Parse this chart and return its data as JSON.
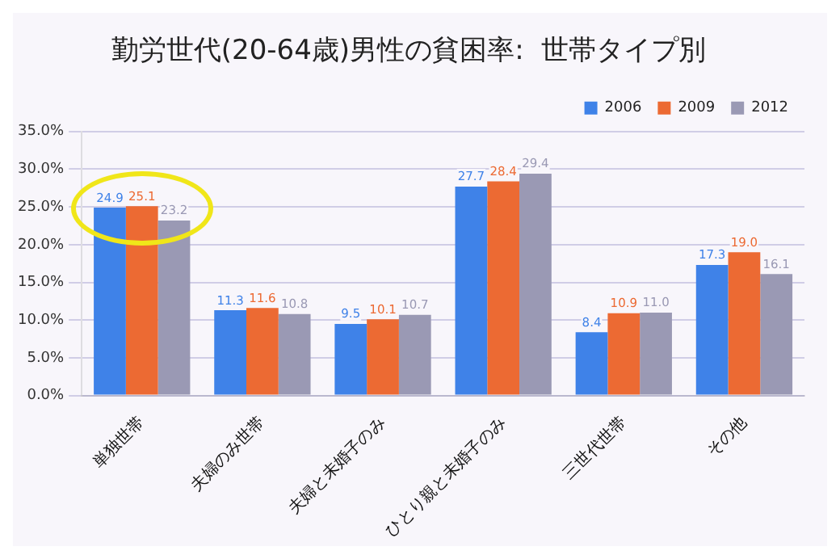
{
  "chart_data": {
    "type": "bar",
    "title": "勤労世代(20-64歳)男性の貧困率:  世帯タイプ別",
    "categories": [
      "単独世帯",
      "夫婦のみ世帯",
      "夫婦と未婚子のみ",
      "ひとり親と未婚子のみ",
      "三世代世帯",
      "その他"
    ],
    "series": [
      {
        "name": "2006",
        "color": "#3f82e8",
        "values": [
          24.9,
          11.3,
          9.5,
          27.7,
          8.4,
          17.3
        ],
        "value_labels": [
          "24.9",
          "11.3",
          "9.5",
          "27.7",
          "8.4",
          "17.3"
        ]
      },
      {
        "name": "2009",
        "color": "#ec6a33",
        "values": [
          25.1,
          11.6,
          10.1,
          28.4,
          10.9,
          19.0
        ],
        "value_labels": [
          "25.1",
          "11.6",
          "10.1",
          "28.4",
          "10.9",
          "19.0"
        ]
      },
      {
        "name": "2012",
        "color": "#9a99b4",
        "values": [
          23.2,
          10.8,
          10.7,
          29.4,
          11.0,
          16.1
        ],
        "value_labels": [
          "23.2",
          "10.8",
          "10.7",
          "29.4",
          "11.0",
          "16.1"
        ]
      }
    ],
    "ylim": [
      0,
      35
    ],
    "yticks": [
      {
        "value": 0,
        "label": "0.0%"
      },
      {
        "value": 5,
        "label": "5.0%"
      },
      {
        "value": 10,
        "label": "10.0%"
      },
      {
        "value": 15,
        "label": "15.0%"
      },
      {
        "value": 20,
        "label": "20.0%"
      },
      {
        "value": 25,
        "label": "25.0%"
      },
      {
        "value": 30,
        "label": "30.0%"
      },
      {
        "value": 35,
        "label": "35.0%"
      }
    ],
    "grid": "y",
    "legend": "top right"
  }
}
